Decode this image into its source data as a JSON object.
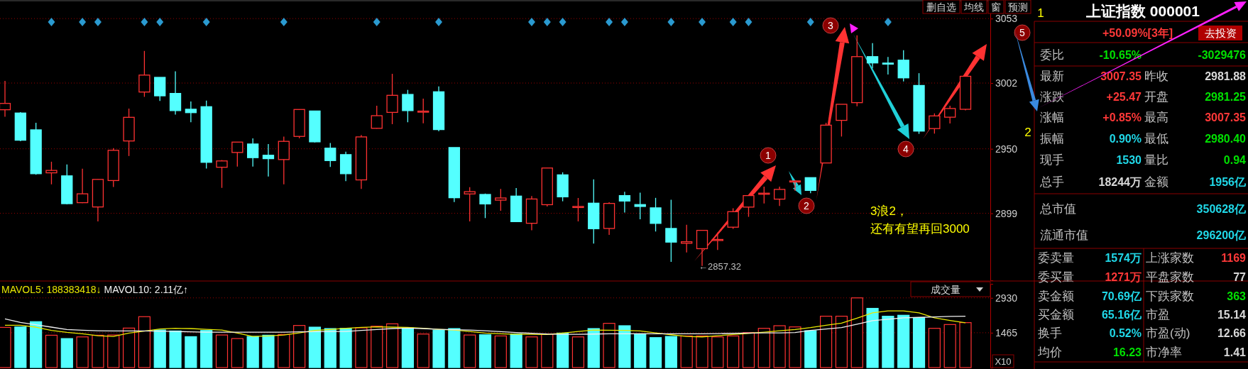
{
  "chart_data": [
    {
      "type": "candlestick",
      "categories": [
        null,
        null,
        null,
        null,
        null,
        null,
        null,
        null,
        null,
        null,
        null,
        null,
        null,
        null,
        null,
        null,
        null,
        null,
        null,
        null,
        null,
        null,
        null,
        null,
        null,
        null,
        null,
        null,
        null,
        null,
        null,
        null,
        null,
        null,
        null,
        null,
        null,
        null,
        null,
        null,
        null,
        null,
        null,
        null,
        null,
        null,
        null,
        null,
        null,
        null,
        null,
        null,
        null,
        null,
        null,
        null,
        null,
        null,
        null,
        null,
        null,
        null,
        null
      ],
      "ohlc": [
        [
          2980.9,
          3003.7,
          2975.3,
          2985.9
        ],
        [
          2978.3,
          2979,
          2956,
          2956.8
        ],
        [
          2965.0,
          2970.6,
          2929.5,
          2930.3
        ],
        [
          2931.0,
          2939.8,
          2921.9,
          2932.9
        ],
        [
          2928.6,
          2937.6,
          2906,
          2906.6
        ],
        [
          2907.4,
          2934.2,
          2907,
          2914.4
        ],
        [
          2904.0,
          2926,
          2892.6,
          2925.8
        ],
        [
          2924.9,
          2950.5,
          2919.8,
          2948.8
        ],
        [
          2956.2,
          2981.8,
          2944.3,
          2974.9
        ],
        [
          2994.9,
          3027.4,
          2991.1,
          3008.3
        ],
        [
          3006.5,
          3006.5,
          2987.8,
          2991.9
        ],
        [
          2993.8,
          3011.3,
          2977.1,
          2980.2
        ],
        [
          2981.3,
          2987.4,
          2971,
          2978.6
        ],
        [
          2983.3,
          2988.2,
          2934.4,
          2939.3
        ],
        [
          2935.4,
          2941.1,
          2919.1,
          2940.4
        ],
        [
          2947.1,
          2955.3,
          2935.9,
          2955.3
        ],
        [
          2953.8,
          2958.3,
          2935.9,
          2943.0
        ],
        [
          2944.9,
          2953.8,
          2928.1,
          2942.2
        ],
        [
          2941.5,
          2959.6,
          2921.9,
          2955.9
        ],
        [
          2959.8,
          2981.1,
          2958.3,
          2981.1
        ],
        [
          2979.9,
          2980,
          2955,
          2955.5
        ],
        [
          2950.5,
          2954.6,
          2935.7,
          2940.7
        ],
        [
          2945.4,
          2947.7,
          2924.5,
          2930.3
        ],
        [
          2925.4,
          2960.9,
          2918.3,
          2959.4
        ],
        [
          2966.2,
          2984.1,
          2966,
          2976.2
        ],
        [
          2978.8,
          3009.3,
          2969.5,
          2992.3
        ],
        [
          2993.0,
          2996.6,
          2971,
          2980.2
        ],
        [
          2979.7,
          2989.7,
          2970.2,
          2979.8
        ],
        [
          2995.1,
          2999.4,
          2963.9,
          2965.2
        ],
        [
          2951.0,
          2951,
          2907.9,
          2911.3
        ],
        [
          2914.3,
          2919.7,
          2892.6,
          2916.1
        ],
        [
          2913.9,
          2914.6,
          2895.2,
          2906.4
        ],
        [
          2909.4,
          2918.2,
          2901.0,
          2911.1
        ],
        [
          2912.6,
          2918.9,
          2892,
          2892.4
        ],
        [
          2891.1,
          2912.6,
          2885.5,
          2910.3
        ],
        [
          2905.8,
          2934.8,
          2904.3,
          2934.8
        ],
        [
          2929.4,
          2931.4,
          2908.5,
          2912.0
        ],
        [
          2904.3,
          2911.1,
          2892.6,
          2904.4
        ],
        [
          2907.0,
          2925.8,
          2875,
          2886.8
        ],
        [
          2887.0,
          2907.7,
          2881.9,
          2906.8
        ],
        [
          2913.0,
          2916.0,
          2899.6,
          2908.7
        ],
        [
          2905.9,
          2915.3,
          2894.3,
          2904.4
        ],
        [
          2903.3,
          2911.2,
          2884.6,
          2891.0
        ],
        [
          2887.0,
          2909.7,
          2860.6,
          2876.2
        ],
        [
          2875.3,
          2889.9,
          2868,
          2876.5
        ],
        [
          2871.0,
          2885.5,
          2857.32,
          2885.5
        ],
        [
          2878.1,
          2883.7,
          2870,
          2878.3
        ],
        [
          2888.0,
          2902.9,
          2886.7,
          2900.3
        ],
        [
          2903.9,
          2913,
          2896.2,
          2913.0
        ],
        [
          2914.8,
          2920.1,
          2906.7,
          2914.9
        ],
        [
          2910.2,
          2920.1,
          2904.8,
          2917.9
        ],
        [
          2924.4,
          2925,
          2916.8,
          2924.6
        ],
        [
          2927.2,
          2927.2,
          2914.9,
          2917.1
        ],
        [
          2938.8,
          2970.6,
          2938.8,
          2968.7
        ],
        [
          2972.5,
          2985.2,
          2959.7,
          2985.2
        ],
        [
          2986.5,
          3039.7,
          2983.7,
          3022.9
        ],
        [
          3022.9,
          3033.6,
          3013.6,
          3017.9
        ],
        [
          3017.8,
          3022.7,
          3008.7,
          3017.6
        ],
        [
          3020.1,
          3028.0,
          3003.3,
          3006.1
        ],
        [
          3000.1,
          3009.8,
          2961.8,
          2964.0
        ],
        [
          2966,
          2978,
          2962,
          2976
        ],
        [
          2975,
          2984,
          2970,
          2981.88
        ],
        [
          2981.25,
          3007.35,
          2980.4,
          3007.35
        ]
      ],
      "colors": [
        "#ff3232",
        "#54ffff",
        "#54ffff",
        "#ff3232",
        "#54ffff",
        "#ff3232",
        "#ff3232",
        "#ff3232",
        "#ff3232",
        "#ff3232",
        "#54ffff",
        "#54ffff",
        "#54ffff",
        "#54ffff",
        "#ff3232",
        "#ff3232",
        "#54ffff",
        "#54ffff",
        "#ff3232",
        "#ff3232",
        "#54ffff",
        "#54ffff",
        "#54ffff",
        "#ff3232",
        "#ff3232",
        "#ff3232",
        "#54ffff",
        "#ff3232",
        "#54ffff",
        "#54ffff",
        "#ff3232",
        "#54ffff",
        "#ff3232",
        "#54ffff",
        "#ff3232",
        "#ff3232",
        "#54ffff",
        "#ff3232",
        "#54ffff",
        "#ff3232",
        "#54ffff",
        "#54ffff",
        "#54ffff",
        "#54ffff",
        "#ff3232",
        "#ff3232",
        "#ff3232",
        "#ff3232",
        "#ff3232",
        "#ff3232",
        "#ff3232",
        "#ff3232",
        "#54ffff",
        "#ff3232",
        "#ff3232",
        "#ff3232",
        "#54ffff",
        "#54ffff",
        "#54ffff",
        "#54ffff",
        "#ff3232",
        "#ff3232",
        "#ff3232"
      ],
      "ylim": [
        2846,
        3066
      ],
      "yticks": [
        2899,
        2950,
        3002,
        3053
      ],
      "grid": "y",
      "tick_labels": "y",
      "annotations": [
        "删自选",
        "均线",
        "窗",
        "预测",
        "1",
        "2",
        "3",
        "4",
        "5",
        "1",
        "2",
        "3浪2，",
        "还有有望再回3000",
        "←2857.32"
      ]
    },
    {
      "type": "bar",
      "categories": [
        null,
        null,
        null,
        null,
        null,
        null,
        null,
        null,
        null,
        null,
        null,
        null,
        null,
        null,
        null,
        null,
        null,
        null,
        null,
        null,
        null,
        null,
        null,
        null,
        null,
        null,
        null,
        null,
        null,
        null,
        null,
        null,
        null,
        null,
        null,
        null,
        null,
        null,
        null,
        null,
        null,
        null,
        null,
        null,
        null,
        null,
        null,
        null,
        null,
        null,
        null,
        null,
        null,
        null,
        null,
        null,
        null,
        null,
        null,
        null,
        null,
        null,
        null
      ],
      "series": [
        {
          "type": "bar",
          "values": [
            1690,
            1710,
            1930,
            1360,
            1220,
            1290,
            1360,
            1370,
            1660,
            2140,
            1580,
            1540,
            1300,
            1560,
            1370,
            1220,
            1310,
            1360,
            1390,
            1770,
            1700,
            1640,
            1650,
            1670,
            1740,
            1840,
            1670,
            1410,
            1570,
            1640,
            1370,
            1380,
            1330,
            1410,
            1290,
            1410,
            1450,
            1290,
            1640,
            1860,
            1760,
            1420,
            1260,
            1310,
            1330,
            1330,
            1290,
            1330,
            1470,
            1650,
            1760,
            1710,
            1550,
            2160,
            2160,
            2930,
            2490,
            2160,
            2200,
            2100,
            1650,
            1810,
            1890
          ],
          "colors": [
            "#ff3232",
            "#54ffff",
            "#54ffff",
            "#ff3232",
            "#54ffff",
            "#ff3232",
            "#ff3232",
            "#ff3232",
            "#ff3232",
            "#ff3232",
            "#54ffff",
            "#54ffff",
            "#54ffff",
            "#54ffff",
            "#ff3232",
            "#ff3232",
            "#54ffff",
            "#54ffff",
            "#ff3232",
            "#ff3232",
            "#54ffff",
            "#54ffff",
            "#54ffff",
            "#ff3232",
            "#ff3232",
            "#ff3232",
            "#54ffff",
            "#ff3232",
            "#54ffff",
            "#54ffff",
            "#ff3232",
            "#54ffff",
            "#ff3232",
            "#54ffff",
            "#ff3232",
            "#ff3232",
            "#54ffff",
            "#ff3232",
            "#54ffff",
            "#ff3232",
            "#54ffff",
            "#54ffff",
            "#54ffff",
            "#54ffff",
            "#ff3232",
            "#ff3232",
            "#ff3232",
            "#ff3232",
            "#ff3232",
            "#ff3232",
            "#ff3232",
            "#ff3232",
            "#54ffff",
            "#ff3232",
            "#ff3232",
            "#ff3232",
            "#54ffff",
            "#54ffff",
            "#54ffff",
            "#54ffff",
            "#ff3232",
            "#ff3232",
            "#ff3232"
          ]
        },
        {
          "type": "line",
          "name": "MAVOL5:",
          "color": "#e8e800",
          "values": [
            1780,
            1780,
            1700,
            1560,
            1480,
            1420,
            1340,
            1310,
            1450,
            1530,
            1620,
            1650,
            1640,
            1610,
            1580,
            1450,
            1310,
            1330,
            1370,
            1460,
            1560,
            1600,
            1650,
            1690,
            1710,
            1700,
            1690,
            1650,
            1610,
            1580,
            1520,
            1450,
            1420,
            1400,
            1400,
            1390,
            1450,
            1520,
            1580,
            1570,
            1560,
            1540,
            1460,
            1380,
            1310,
            1290,
            1340,
            1390,
            1440,
            1490,
            1550,
            1600,
            1680,
            1780,
            1870,
            2080,
            2300,
            2380,
            2380,
            2300,
            2090,
            1980,
            1880
          ]
        },
        {
          "type": "line",
          "name": "MAVOL10:",
          "color": "#f0f0f0",
          "values": [
            2050,
            1900,
            1800,
            1700,
            1600,
            1570,
            1550,
            1540,
            1540,
            1540,
            1530,
            1520,
            1500,
            1490,
            1490,
            1490,
            1490,
            1490,
            1490,
            1500,
            1510,
            1520,
            1520,
            1560,
            1600,
            1640,
            1660,
            1640,
            1610,
            1590,
            1580,
            1550,
            1510,
            1470,
            1440,
            1410,
            1400,
            1400,
            1410,
            1420,
            1420,
            1420,
            1420,
            1420,
            1420,
            1420,
            1430,
            1440,
            1450,
            1460,
            1460,
            1470,
            1560,
            1620,
            1680,
            1820,
            1970,
            2030,
            2090,
            2110,
            2130,
            2150,
            2160
          ]
        }
      ],
      "ylim": [
        0,
        3520
      ],
      "yticks": [
        1465,
        2930
      ],
      "grid": "y",
      "tick_labels": "y",
      "annotations": [
        "188383418↓",
        "2.11亿↑",
        "成交量",
        "X10"
      ]
    },
    {
      "type": "other",
      "title": "上证指数 000001",
      "annotations": [
        "+50.09%[3年]",
        "去投资",
        "委比",
        "-10.65%",
        "-3029476",
        "最新",
        "3007.35",
        "昨收",
        "2981.88",
        "涨跌",
        "+25.47",
        "开盘",
        "2981.25",
        "涨幅",
        "+0.85%",
        "最高",
        "3007.35",
        "振幅",
        "0.90%",
        "最低",
        "2980.40",
        "现手",
        "1530",
        "量比",
        "0.94",
        "总手",
        "18244万",
        "金额",
        "1956亿",
        "总市值",
        "350628亿",
        "流通市值",
        "296200亿",
        "委卖量",
        "1574万",
        "上涨家数",
        "1169",
        "委买量",
        "1271万",
        "平盘家数",
        "77",
        "卖金额",
        "70.69亿",
        "下跌家数",
        "363",
        "买金额",
        "65.16亿",
        "市盈",
        "15.14",
        "换手",
        "0.52%",
        "市盈(动)",
        "12.66",
        "均价",
        "16.23",
        "市净率",
        "1.41"
      ]
    }
  ]
}
